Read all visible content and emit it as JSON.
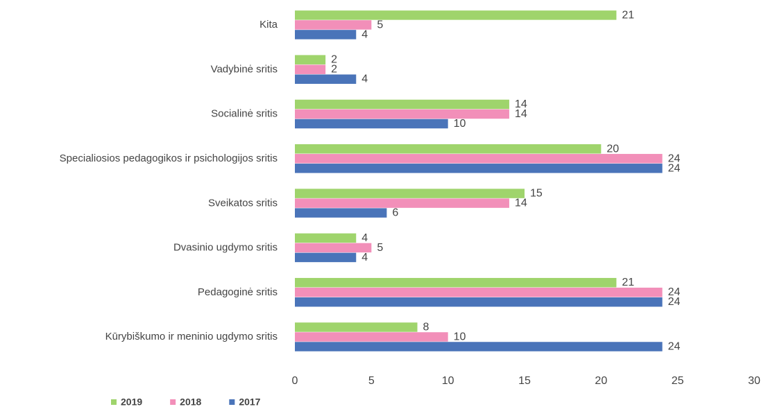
{
  "chart_data": {
    "type": "hbar",
    "categories": [
      "Kita",
      "Vadybinė sritis",
      "Socialinė sritis",
      "Specialiosios pedagogikos ir psichologijos sritis",
      "Sveikatos sritis",
      "Dvasinio ugdymo sritis",
      "Pedagoginė sritis",
      "Kūrybiškumo ir meninio ugdymo sritis"
    ],
    "series": [
      {
        "name": "2019",
        "color": "#9fd46c",
        "values": [
          21,
          2,
          14,
          20,
          15,
          4,
          21,
          8
        ]
      },
      {
        "name": "2018",
        "color": "#f28fb9",
        "values": [
          5,
          2,
          14,
          24,
          14,
          5,
          24,
          10
        ]
      },
      {
        "name": "2017",
        "color": "#4a74b9",
        "values": [
          4,
          4,
          10,
          24,
          6,
          4,
          24,
          24
        ]
      }
    ],
    "xlim": [
      0,
      30
    ],
    "xticks": [
      0,
      5,
      10,
      15,
      20,
      25,
      30
    ],
    "grid": false,
    "legend": "bottom"
  }
}
